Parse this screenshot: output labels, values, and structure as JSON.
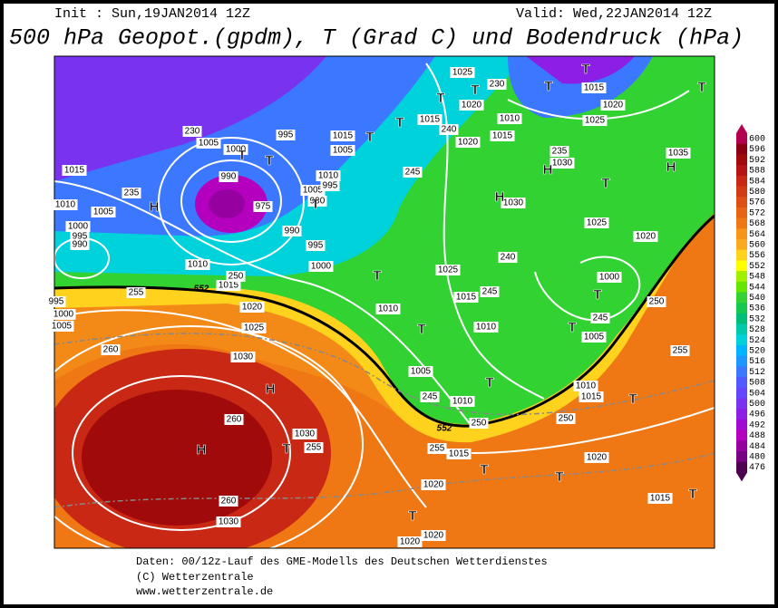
{
  "header": {
    "init": "Init : Sun,19JAN2014 12Z",
    "valid": "Valid: Wed,22JAN2014 12Z",
    "title": "500 hPa Geopot.(gpdm), T (Grad C) und Bodendruck (hPa)"
  },
  "legend": {
    "labels": [
      600,
      596,
      592,
      588,
      584,
      580,
      576,
      572,
      568,
      564,
      560,
      556,
      552,
      548,
      544,
      540,
      536,
      532,
      528,
      524,
      520,
      516,
      512,
      508,
      504,
      500,
      496,
      492,
      488,
      484,
      480,
      476
    ],
    "colors": [
      "#b40050",
      "#8c0014",
      "#a00a0a",
      "#b41414",
      "#c82814",
      "#d23c14",
      "#dc5014",
      "#e66414",
      "#f07814",
      "#f59619",
      "#faaa1e",
      "#ffd21e",
      "#ffff00",
      "#a0f000",
      "#64e600",
      "#32d232",
      "#14c850",
      "#00be78",
      "#00c8aa",
      "#00d2dc",
      "#00b4ff",
      "#1e96ff",
      "#3c78ff",
      "#505aff",
      "#6446ff",
      "#7832f0",
      "#8c1ee6",
      "#a00ad2",
      "#b400be",
      "#9600a0",
      "#780082",
      "#500050"
    ]
  },
  "map_labels": [
    "1025",
    "1015",
    "1020",
    "1020",
    "1015",
    "1010",
    "1025",
    "1020",
    "1015",
    "1005",
    "1000",
    "995",
    "1015",
    "1005",
    "1010",
    "1005",
    "995",
    "990",
    "990",
    "975",
    "990",
    "995",
    "1000",
    "1010",
    "1015",
    "1020",
    "1025",
    "1030",
    "1030",
    "1030",
    "1030",
    "1030",
    "1025",
    "1020",
    "1025",
    "1015",
    "1010",
    "1005",
    "1010",
    "1015",
    "1020",
    "1020",
    "1020",
    "1015",
    "1020",
    "1010",
    "1000",
    "1005",
    "1010",
    "1015",
    "1035",
    "1015",
    "1010",
    "1000",
    "995",
    "990",
    "1005",
    "995",
    "1000",
    "1005",
    "230",
    "230",
    "235",
    "240",
    "245",
    "250",
    "255",
    "260",
    "260",
    "255",
    "260",
    "250",
    "255",
    "245",
    "250",
    "245",
    "250",
    "255",
    "235",
    "240",
    "245",
    "H",
    "H",
    "H",
    "H",
    "H",
    "H",
    "T",
    "T",
    "T",
    "T",
    "T",
    "T",
    "T",
    "T",
    "T",
    "T",
    "T",
    "T",
    "T",
    "T",
    "T",
    "T",
    "T",
    "T",
    "T",
    "T",
    "T",
    "T",
    "552",
    "552"
  ],
  "footer": {
    "data": "Daten: 00/12z-Lauf des GME-Modells des Deutschen Wetterdienstes",
    "copyright": "(C) Wetterzentrale",
    "url": "www.wetterzentrale.de"
  }
}
